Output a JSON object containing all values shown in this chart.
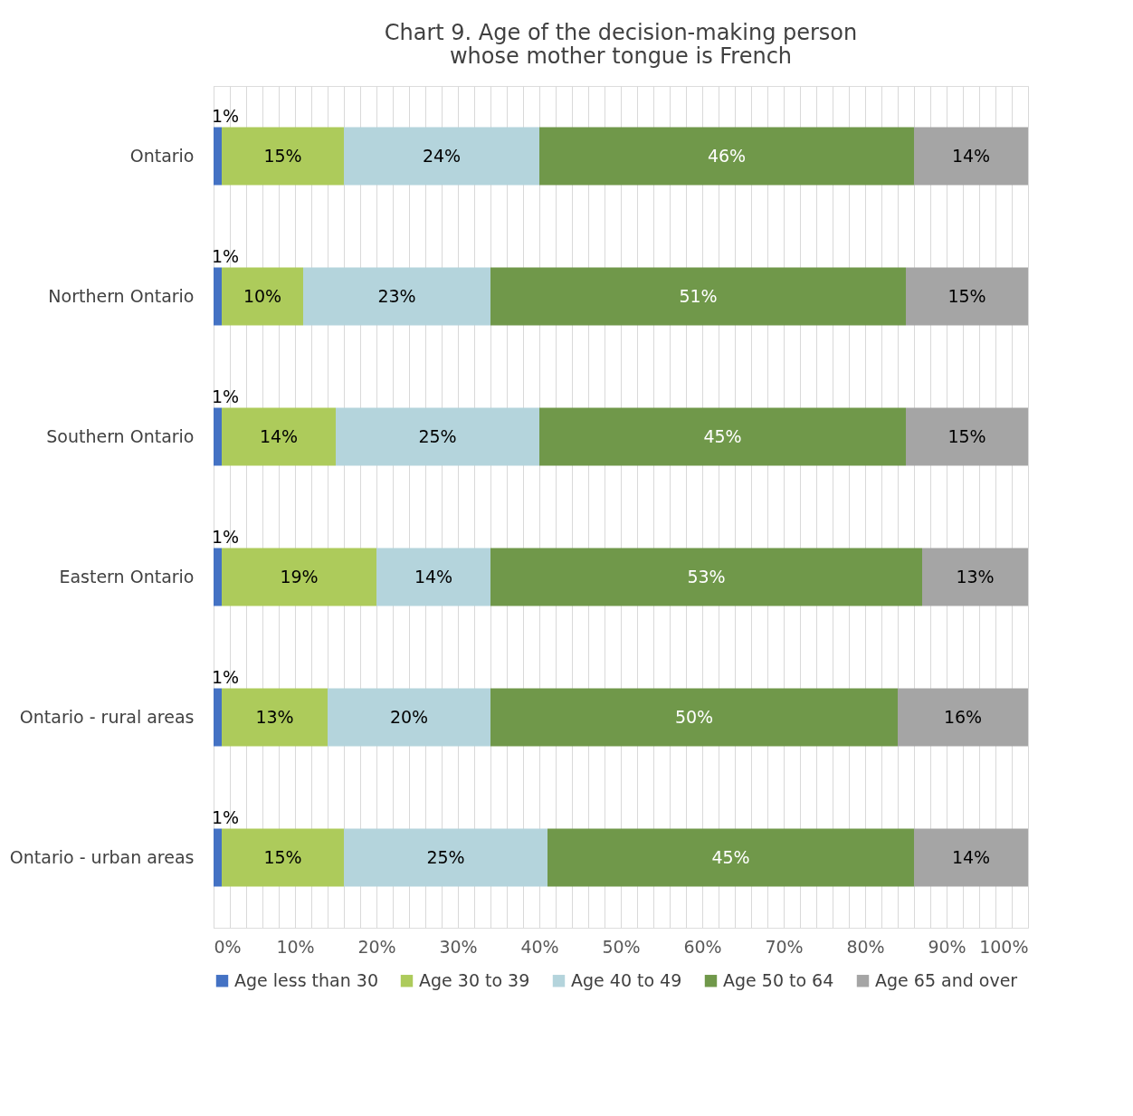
{
  "chart_data": {
    "type": "bar",
    "orientation": "horizontal",
    "stacked": true,
    "title": "Chart 9. Age of the decision-making person\nwhose mother tongue is French",
    "categories": [
      "Ontario",
      "Northern Ontario",
      "Southern Ontario",
      "Eastern Ontario",
      "Ontario - rural areas",
      "Ontario - urban areas"
    ],
    "series": [
      {
        "name": "Age less than 30",
        "color": "#4472c4",
        "values": [
          1,
          1,
          1,
          1,
          1,
          1
        ],
        "value_labels": [
          "1%",
          "1%",
          "1%",
          "1%",
          "1%",
          "1%"
        ]
      },
      {
        "name": "Age 30 to 39",
        "color": "#adcb5b",
        "values": [
          15,
          10,
          14,
          19,
          13,
          15
        ],
        "value_labels": [
          "15%",
          "10%",
          "14%",
          "19%",
          "13%",
          "15%"
        ]
      },
      {
        "name": "Age 40 to 49",
        "color": "#b4d4dc",
        "values": [
          24,
          23,
          25,
          14,
          20,
          25
        ],
        "value_labels": [
          "24%",
          "23%",
          "25%",
          "14%",
          "20%",
          "25%"
        ]
      },
      {
        "name": "Age 50 to 64",
        "color": "#70984a",
        "values": [
          46,
          51,
          45,
          53,
          50,
          45
        ],
        "value_labels": [
          "46%",
          "51%",
          "45%",
          "53%",
          "50%",
          "45%"
        ]
      },
      {
        "name": "Age 65 and over",
        "color": "#a5a5a5",
        "values": [
          14,
          15,
          15,
          13,
          16,
          14
        ],
        "value_labels": [
          "14%",
          "15%",
          "15%",
          "13%",
          "16%",
          "14%"
        ]
      }
    ],
    "xlim": [
      0,
      100
    ],
    "xticks": [
      {
        "value": 0,
        "label": "0%"
      },
      {
        "value": 2,
        "label": null
      },
      {
        "value": 4,
        "label": null
      },
      {
        "value": 6,
        "label": null
      },
      {
        "value": 8,
        "label": null
      },
      {
        "value": 10,
        "label": "10%"
      },
      {
        "value": 12,
        "label": null
      },
      {
        "value": 14,
        "label": null
      },
      {
        "value": 16,
        "label": null
      },
      {
        "value": 18,
        "label": null
      },
      {
        "value": 20,
        "label": "20%"
      },
      {
        "value": 22,
        "label": null
      },
      {
        "value": 24,
        "label": null
      },
      {
        "value": 26,
        "label": null
      },
      {
        "value": 28,
        "label": null
      },
      {
        "value": 30,
        "label": "30%"
      },
      {
        "value": 32,
        "label": null
      },
      {
        "value": 34,
        "label": null
      },
      {
        "value": 36,
        "label": null
      },
      {
        "value": 38,
        "label": null
      },
      {
        "value": 40,
        "label": "40%"
      },
      {
        "value": 42,
        "label": null
      },
      {
        "value": 44,
        "label": null
      },
      {
        "value": 46,
        "label": null
      },
      {
        "value": 48,
        "label": null
      },
      {
        "value": 50,
        "label": "50%"
      },
      {
        "value": 52,
        "label": null
      },
      {
        "value": 54,
        "label": null
      },
      {
        "value": 56,
        "label": null
      },
      {
        "value": 58,
        "label": null
      },
      {
        "value": 60,
        "label": "60%"
      },
      {
        "value": 62,
        "label": null
      },
      {
        "value": 64,
        "label": null
      },
      {
        "value": 66,
        "label": null
      },
      {
        "value": 68,
        "label": null
      },
      {
        "value": 70,
        "label": "70%"
      },
      {
        "value": 72,
        "label": null
      },
      {
        "value": 74,
        "label": null
      },
      {
        "value": 76,
        "label": null
      },
      {
        "value": 78,
        "label": null
      },
      {
        "value": 80,
        "label": "80%"
      },
      {
        "value": 82,
        "label": null
      },
      {
        "value": 84,
        "label": null
      },
      {
        "value": 86,
        "label": null
      },
      {
        "value": 88,
        "label": null
      },
      {
        "value": 90,
        "label": "90%"
      },
      {
        "value": 92,
        "label": null
      },
      {
        "value": 94,
        "label": null
      },
      {
        "value": 96,
        "label": null
      },
      {
        "value": 98,
        "label": null
      },
      {
        "value": 100,
        "label": "100%"
      }
    ],
    "grid": "x",
    "legend": "bottom"
  }
}
